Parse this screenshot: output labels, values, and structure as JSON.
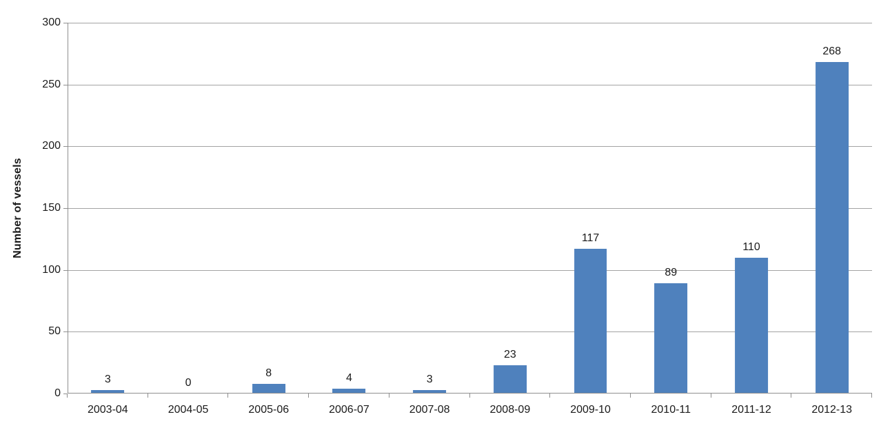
{
  "chart_data": {
    "type": "bar",
    "title": "",
    "categories": [
      "2003-04",
      "2004-05",
      "2005-06",
      "2006-07",
      "2007-08",
      "2008-09",
      "2009-10",
      "2010-11",
      "2011-12",
      "2012-13"
    ],
    "values": [
      3,
      0,
      8,
      4,
      3,
      23,
      117,
      89,
      110,
      268
    ],
    "data_labels": [
      "3",
      "0",
      "8",
      "4",
      "3",
      "23",
      "117",
      "89",
      "110",
      "268"
    ],
    "xlabel": "",
    "ylabel": "Number of vessels",
    "ylim": [
      0,
      300
    ],
    "yticks": [
      0,
      50,
      100,
      150,
      200,
      250,
      300
    ],
    "grid": "horizontal",
    "legend_position": "none",
    "colors": {
      "bar_fill": "#4F81BD",
      "gridline": "#A3A3A3",
      "axis": "#8E8E8E",
      "text": "#1A1A1A",
      "background": "#FFFFFF"
    }
  }
}
